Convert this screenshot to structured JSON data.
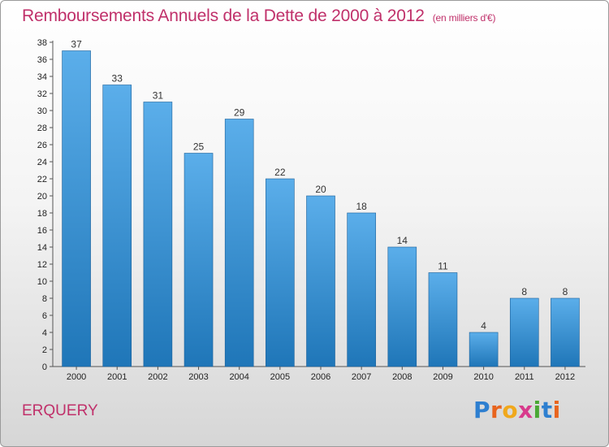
{
  "chart_data": {
    "type": "bar",
    "title": "Remboursements Annuels de la Dette de 2000 à 2012",
    "unit": "(en milliers d'€)",
    "categories": [
      "2000",
      "2001",
      "2002",
      "2003",
      "2004",
      "2005",
      "2006",
      "2007",
      "2008",
      "2009",
      "2010",
      "2011",
      "2012"
    ],
    "values": [
      37,
      33,
      31,
      25,
      29,
      22,
      20,
      18,
      14,
      11,
      4,
      8,
      8
    ],
    "ylim": [
      0,
      38
    ],
    "yticks": [
      0,
      2,
      4,
      6,
      8,
      10,
      12,
      14,
      16,
      18,
      20,
      22,
      24,
      26,
      28,
      30,
      32,
      34,
      36,
      38
    ],
    "grid": false,
    "colors": {
      "bar_top": "#5baeea",
      "bar_bottom": "#1f76b8",
      "title": "#c0306a"
    }
  },
  "footer": {
    "place": "ERQUERY",
    "logo_letters": [
      "P",
      "r",
      "o",
      "x",
      "i",
      "t",
      "i"
    ],
    "logo_colors": [
      "#2e7fd0",
      "#e8641e",
      "#f0a81c",
      "#d83a8c",
      "#4aa834",
      "#2e7fd0",
      "#e8641e"
    ]
  }
}
